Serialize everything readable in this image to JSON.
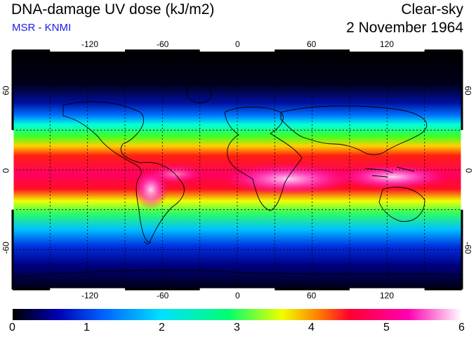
{
  "header": {
    "title": "DNA-damage UV dose (kJ/m2)",
    "subtitle": "MSR - KNMI",
    "condition": "Clear-sky",
    "date": "2 November 1964"
  },
  "map": {
    "x_ticks": [
      "-120",
      "-60",
      "0",
      "60",
      "120"
    ],
    "y_ticks": [
      "60",
      "0",
      "-60"
    ],
    "lon_range": [
      -180,
      180
    ],
    "lat_range": [
      -90,
      90
    ],
    "grid": "dashed, every 30 degrees"
  },
  "colorbar": {
    "labels": [
      "0",
      "1",
      "2",
      "3",
      "4",
      "5",
      "6"
    ],
    "range": [
      0,
      6
    ],
    "colors": [
      "#000000",
      "#0000b0",
      "#0060ff",
      "#00e0ff",
      "#00ff70",
      "#f0ff00",
      "#ff8000",
      "#ff0030",
      "#ff00b0",
      "#ffffff"
    ]
  }
}
